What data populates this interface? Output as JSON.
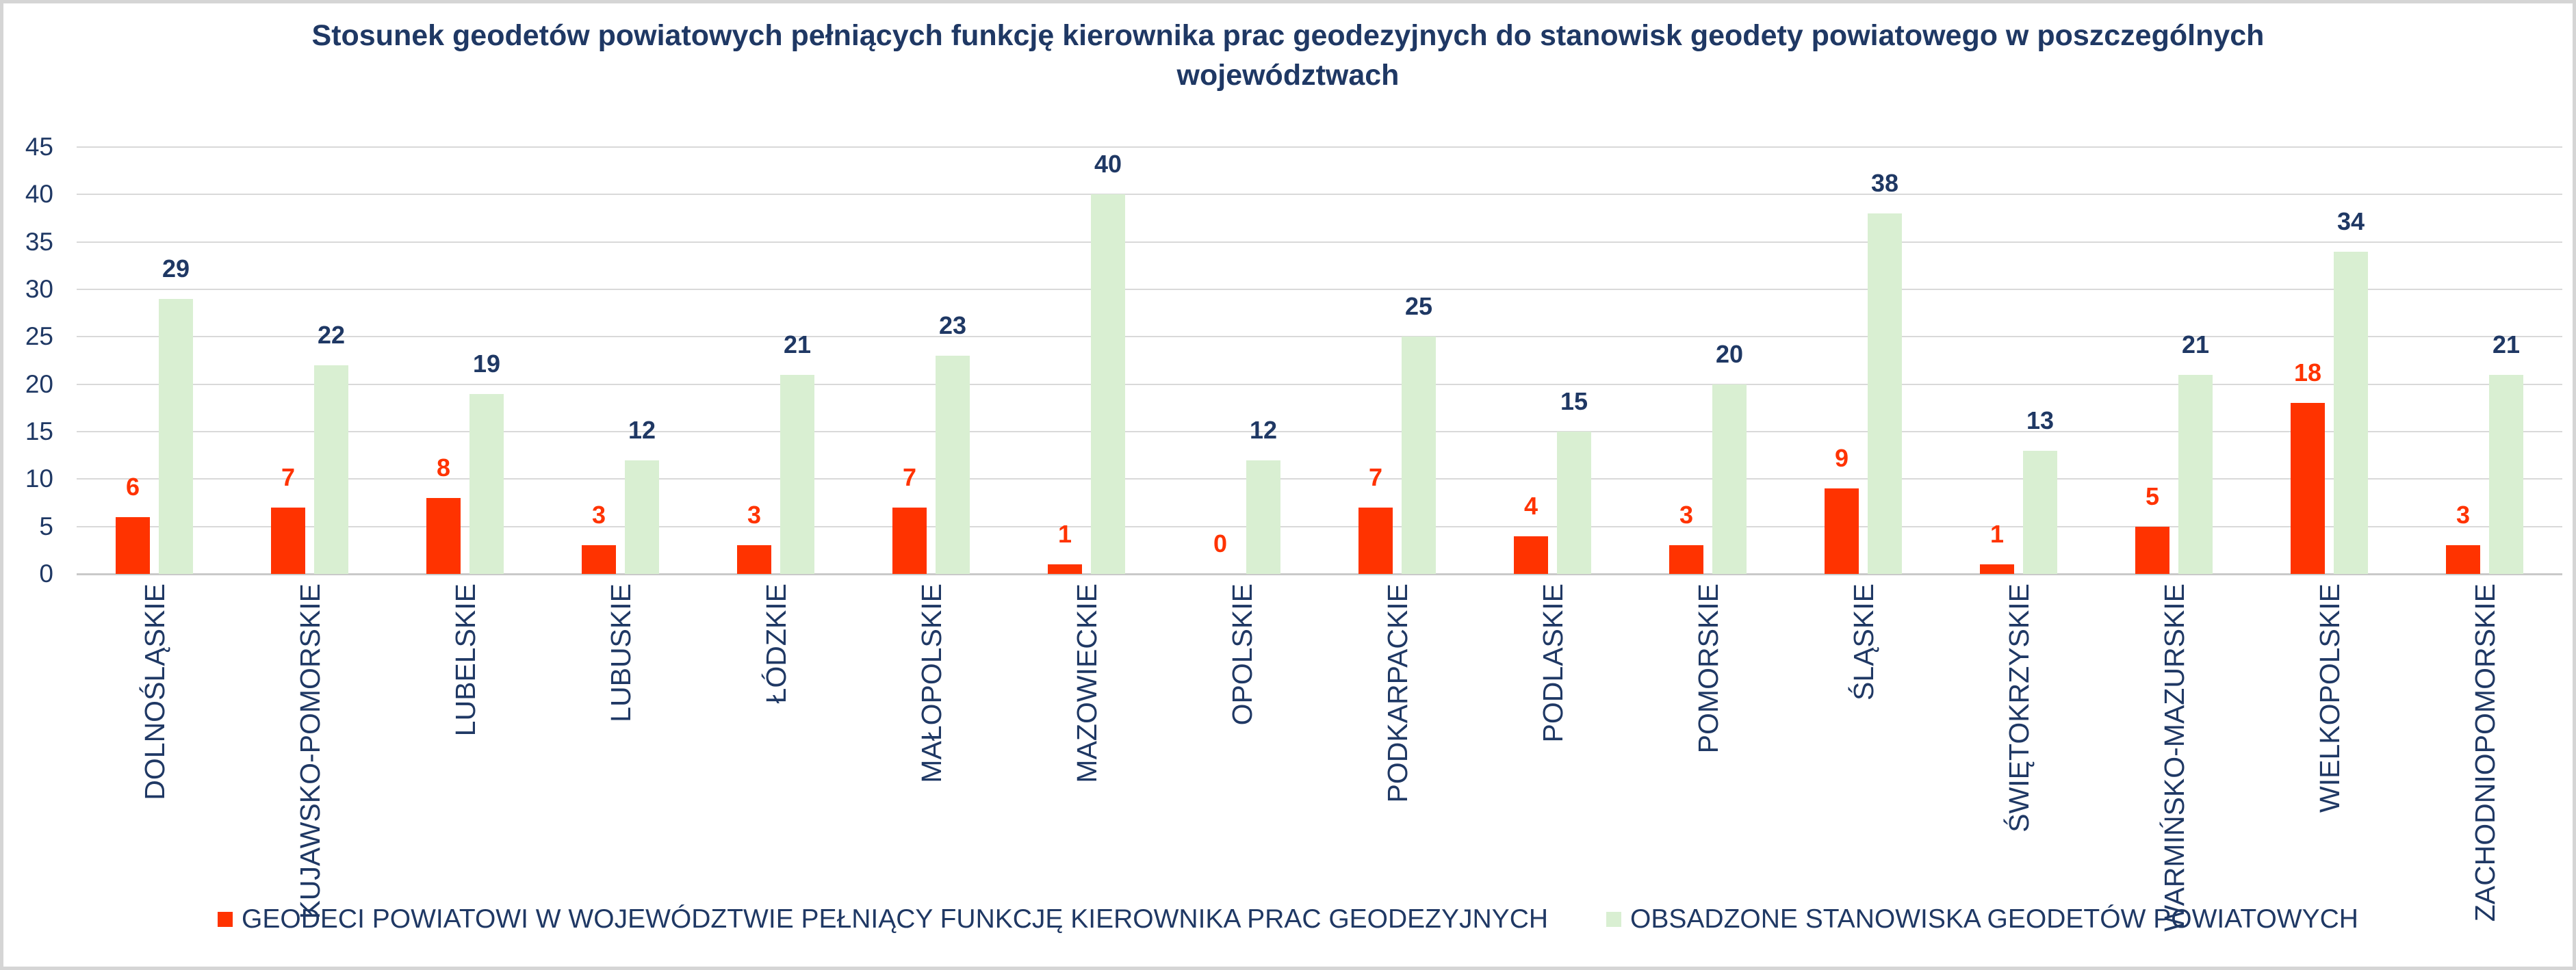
{
  "chart_data": {
    "type": "bar",
    "title": "Stosunek geodetów powiatowych pełniących funkcję kierownika prac geodezyjnych do stanowisk geodety powiatowego w poszczególnych województwach",
    "title_lines": [
      "Stosunek geodetów powiatowych pełniących funkcję kierownika prac geodezyjnych do stanowisk geodety powiatowego w poszczególnych",
      "województwach"
    ],
    "categories": [
      "DOLNOŚLĄSKIE",
      "KUJAWSKO-POMORSKIE",
      "LUBELSKIE",
      "LUBUSKIE",
      "ŁÓDZKIE",
      "MAŁOPOLSKIE",
      "MAZOWIECKIE",
      "OPOLSKIE",
      "PODKARPACKIE",
      "PODLASKIE",
      "POMORSKIE",
      "ŚLĄSKIE",
      "ŚWIĘTOKRZYSKIE",
      "WARMIŃSKO-MAZURSKIE",
      "WIELKOPOLSKIE",
      "ZACHODNIOPOMORSKIE"
    ],
    "series": [
      {
        "name": "GEODECI POWIATOWI W WOJEWÓDZTWIE PEŁNIĄCY FUNKCJĘ KIEROWNIKA PRAC GEODEZYJNYCH",
        "color": "#FF3300",
        "label_color": "#FF3300",
        "values": [
          6,
          7,
          8,
          3,
          3,
          7,
          1,
          0,
          7,
          4,
          3,
          9,
          1,
          5,
          18,
          3
        ]
      },
      {
        "name": "OBSADZONE STANOWISKA GEODETÓW POWIATOWYCH",
        "color": "#D9EFD2",
        "label_color": "#1F3864",
        "values": [
          29,
          22,
          19,
          12,
          21,
          23,
          40,
          12,
          25,
          15,
          20,
          38,
          13,
          21,
          34,
          21
        ]
      }
    ],
    "y_axis": {
      "min": 0,
      "max": 45,
      "step": 5,
      "ticks": [
        0,
        5,
        10,
        15,
        20,
        25,
        30,
        35,
        40,
        45
      ]
    },
    "grid": true,
    "legend_position": "bottom",
    "colors": {
      "text_navy": "#1F3864",
      "gridline": "#D9D9D9",
      "axis_line": "#C9C9C9",
      "background": "#FFFFFF",
      "frame_border": "#D5D5D5"
    }
  }
}
